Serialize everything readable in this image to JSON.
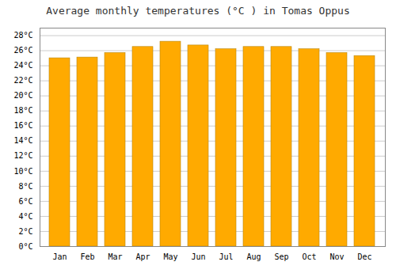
{
  "chart_data": {
    "type": "bar",
    "title": "Average monthly temperatures (°C ) in Tomas Oppus",
    "categories": [
      "Jan",
      "Feb",
      "Mar",
      "Apr",
      "May",
      "Jun",
      "Jul",
      "Aug",
      "Sep",
      "Oct",
      "Nov",
      "Dec"
    ],
    "values": [
      25.0,
      25.1,
      25.7,
      26.5,
      27.2,
      26.7,
      26.2,
      26.5,
      26.5,
      26.2,
      25.7,
      25.3
    ],
    "color": "#FFAA00",
    "ylim": [
      0,
      29.0
    ],
    "yticks": [
      {
        "value": 0,
        "label": "0°C"
      },
      {
        "value": 2,
        "label": "2°C"
      },
      {
        "value": 4,
        "label": "4°C"
      },
      {
        "value": 6,
        "label": "6°C"
      },
      {
        "value": 8,
        "label": "8°C"
      },
      {
        "value": 10,
        "label": "10°C"
      },
      {
        "value": 12,
        "label": "12°C"
      },
      {
        "value": 14,
        "label": "14°C"
      },
      {
        "value": 16,
        "label": "16°C"
      },
      {
        "value": 18,
        "label": "18°C"
      },
      {
        "value": 20,
        "label": "20°C"
      },
      {
        "value": 22,
        "label": "22°C"
      },
      {
        "value": 24,
        "label": "24°C"
      },
      {
        "value": 26,
        "label": "26°C"
      },
      {
        "value": 28,
        "label": "28°C"
      }
    ],
    "grid": true
  }
}
